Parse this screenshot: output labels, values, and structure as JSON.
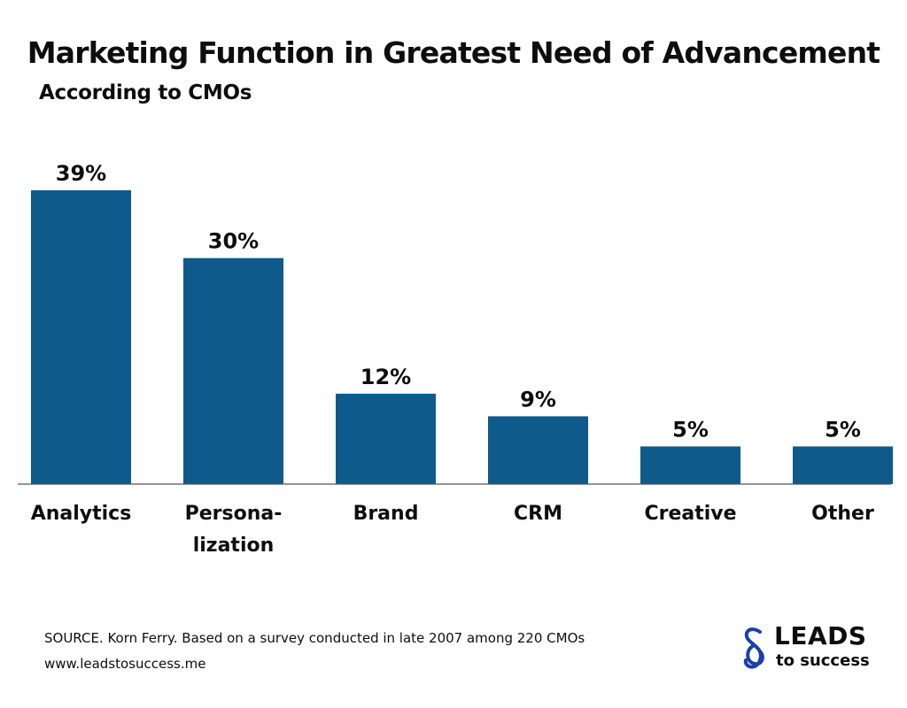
{
  "header": {
    "title": "Marketing Function in Greatest Need of Advancement",
    "subtitle": "According to CMOs"
  },
  "chart_data": {
    "type": "bar",
    "categories": [
      "Analytics",
      "Personalization",
      "Brand",
      "CRM",
      "Creative",
      "Other"
    ],
    "category_label_lines": [
      [
        "Analytics"
      ],
      [
        "Persona-",
        "lization"
      ],
      [
        "Brand"
      ],
      [
        "CRM"
      ],
      [
        "Creative"
      ],
      [
        "Other"
      ]
    ],
    "values": [
      39,
      30,
      12,
      9,
      5,
      5
    ],
    "data_labels": [
      "39%",
      "30%",
      "12%",
      "9%",
      "5%",
      "5%"
    ],
    "unit": "%",
    "ylim": [
      0,
      39
    ],
    "grid": false,
    "legend": "none",
    "bar_color": "#0e5a8a"
  },
  "footer": {
    "source": "SOURCE. Korn Ferry. Based on a survey conducted in late 2007 among 220 CMOs",
    "url": "www.leadstosuccess.me"
  },
  "logo": {
    "line1": "LEADS",
    "line2": "to success",
    "icon": "infinity-s-icon",
    "color": "#1a3fb0"
  }
}
